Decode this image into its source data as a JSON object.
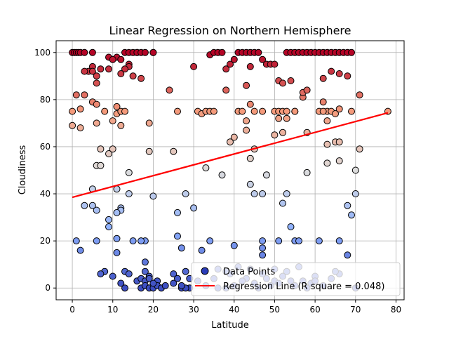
{
  "chart_data": {
    "type": "scatter",
    "title": "Linear Regression on Northern Hemisphere",
    "xlabel": "Latitude",
    "ylabel": "Cloudiness",
    "xlim": [
      -4,
      82
    ],
    "ylim": [
      -5,
      105
    ],
    "xticks": [
      0,
      10,
      20,
      30,
      40,
      50,
      60,
      70,
      80
    ],
    "yticks": [
      0,
      20,
      40,
      60,
      80,
      100
    ],
    "grid": true,
    "legend_position": "lower-right",
    "colormap": "coolwarm",
    "regression": {
      "slope": 0.46,
      "intercept": 38.5,
      "x_range": [
        0,
        78
      ],
      "color": "#ff0000"
    },
    "legend": {
      "points_label": "Data Points",
      "line_label": "Regression Line (R square = 0.048)"
    },
    "points": [
      [
        0,
        100
      ],
      [
        0.5,
        100
      ],
      [
        1,
        100
      ],
      [
        1.5,
        100
      ],
      [
        2,
        100
      ],
      [
        3,
        100
      ],
      [
        5,
        100
      ],
      [
        16,
        100
      ],
      [
        20,
        100
      ],
      [
        20,
        100
      ],
      [
        13,
        100
      ],
      [
        14,
        100
      ],
      [
        15,
        100
      ],
      [
        16,
        100
      ],
      [
        17,
        100
      ],
      [
        18,
        100
      ],
      [
        11,
        98
      ],
      [
        9,
        98
      ],
      [
        10,
        97
      ],
      [
        12,
        97
      ],
      [
        14,
        95
      ],
      [
        14,
        94
      ],
      [
        13,
        93
      ],
      [
        12,
        91
      ],
      [
        9,
        93
      ],
      [
        7,
        93
      ],
      [
        5,
        94
      ],
      [
        4,
        92
      ],
      [
        3,
        92
      ],
      [
        5,
        92
      ],
      [
        6,
        90
      ],
      [
        15,
        90
      ],
      [
        17,
        89
      ],
      [
        6,
        87
      ],
      [
        3,
        82
      ],
      [
        1,
        82
      ],
      [
        0,
        75
      ],
      [
        2,
        76
      ],
      [
        0,
        69
      ],
      [
        2,
        68
      ],
      [
        6,
        70
      ],
      [
        5,
        79
      ],
      [
        6,
        78
      ],
      [
        8,
        75
      ],
      [
        11,
        77
      ],
      [
        11,
        74
      ],
      [
        12,
        75
      ],
      [
        13,
        75
      ],
      [
        10,
        71
      ],
      [
        12,
        69
      ],
      [
        19,
        70
      ],
      [
        7,
        59
      ],
      [
        9,
        57
      ],
      [
        10,
        59
      ],
      [
        19,
        58
      ],
      [
        6,
        52
      ],
      [
        7,
        52
      ],
      [
        14,
        49
      ],
      [
        11,
        42
      ],
      [
        14,
        40
      ],
      [
        20,
        39
      ],
      [
        5,
        42
      ],
      [
        3,
        35
      ],
      [
        5,
        35
      ],
      [
        6,
        33
      ],
      [
        12,
        34
      ],
      [
        12,
        33
      ],
      [
        11,
        32
      ],
      [
        9,
        29
      ],
      [
        9,
        26
      ],
      [
        1,
        20
      ],
      [
        2,
        16
      ],
      [
        6,
        20
      ],
      [
        11,
        21
      ],
      [
        11,
        15
      ],
      [
        15,
        20
      ],
      [
        18,
        20
      ],
      [
        17,
        20
      ],
      [
        8,
        7
      ],
      [
        7,
        6
      ],
      [
        10,
        5
      ],
      [
        13,
        7
      ],
      [
        14,
        6
      ],
      [
        12,
        2
      ],
      [
        13,
        0
      ],
      [
        16,
        3
      ],
      [
        17,
        4
      ],
      [
        18,
        3
      ],
      [
        18,
        11
      ],
      [
        18,
        7
      ],
      [
        19,
        5
      ],
      [
        17,
        0
      ],
      [
        18,
        1
      ],
      [
        19,
        0
      ],
      [
        20,
        0
      ],
      [
        21,
        3
      ],
      [
        21,
        1
      ],
      [
        22,
        0
      ],
      [
        23,
        1
      ],
      [
        20,
        2
      ],
      [
        19,
        4
      ],
      [
        24,
        84
      ],
      [
        26,
        75
      ],
      [
        25,
        58
      ],
      [
        26,
        32
      ],
      [
        26,
        22
      ],
      [
        27,
        17
      ],
      [
        28,
        40
      ],
      [
        25,
        6
      ],
      [
        26,
        4
      ],
      [
        25,
        2
      ],
      [
        27,
        0
      ],
      [
        28,
        7
      ],
      [
        29,
        4
      ],
      [
        30,
        34
      ],
      [
        30,
        94
      ],
      [
        31,
        75
      ],
      [
        32,
        74
      ],
      [
        33,
        75
      ],
      [
        34,
        75
      ],
      [
        35,
        75
      ],
      [
        32,
        16
      ],
      [
        33,
        51
      ],
      [
        34,
        99
      ],
      [
        35,
        100
      ],
      [
        36,
        100
      ],
      [
        37,
        100
      ],
      [
        38,
        93
      ],
      [
        39,
        95
      ],
      [
        40,
        97
      ],
      [
        41,
        100
      ],
      [
        42,
        100
      ],
      [
        43,
        100
      ],
      [
        44,
        100
      ],
      [
        45,
        100
      ],
      [
        46,
        100
      ],
      [
        44,
        94
      ],
      [
        47,
        97
      ],
      [
        48,
        95
      ],
      [
        49,
        95
      ],
      [
        50,
        95
      ],
      [
        51,
        88
      ],
      [
        52,
        87
      ],
      [
        53,
        100
      ],
      [
        54,
        100
      ],
      [
        55,
        100
      ],
      [
        56,
        100
      ],
      [
        57,
        100
      ],
      [
        58,
        100
      ],
      [
        59,
        100
      ],
      [
        60,
        100
      ],
      [
        61,
        100
      ],
      [
        62,
        100
      ],
      [
        63,
        100
      ],
      [
        64,
        100
      ],
      [
        65,
        100
      ],
      [
        66,
        100
      ],
      [
        67,
        100
      ],
      [
        68,
        100
      ],
      [
        69,
        100
      ],
      [
        62,
        89
      ],
      [
        64,
        92
      ],
      [
        66,
        91
      ],
      [
        68,
        90
      ],
      [
        54,
        88
      ],
      [
        38,
        84
      ],
      [
        43,
        86
      ],
      [
        44,
        78
      ],
      [
        41,
        75
      ],
      [
        42,
        75
      ],
      [
        45,
        75
      ],
      [
        47,
        75
      ],
      [
        50,
        75
      ],
      [
        51,
        75
      ],
      [
        52,
        75
      ],
      [
        53,
        75
      ],
      [
        55,
        75
      ],
      [
        57,
        81
      ],
      [
        57,
        83
      ],
      [
        58,
        84
      ],
      [
        62,
        79
      ],
      [
        63,
        75
      ],
      [
        64,
        75
      ],
      [
        65,
        74
      ],
      [
        66,
        76
      ],
      [
        69,
        75
      ],
      [
        71,
        82
      ],
      [
        78,
        75
      ],
      [
        51,
        72
      ],
      [
        53,
        72
      ],
      [
        55,
        75
      ],
      [
        61,
        75
      ],
      [
        62,
        75
      ],
      [
        63,
        71
      ],
      [
        65,
        62
      ],
      [
        66,
        62
      ],
      [
        63,
        61
      ],
      [
        58,
        66
      ],
      [
        52,
        66
      ],
      [
        50,
        65
      ],
      [
        43,
        71
      ],
      [
        43,
        67
      ],
      [
        40,
        64
      ],
      [
        39,
        62
      ],
      [
        45,
        59
      ],
      [
        44,
        55
      ],
      [
        63,
        53
      ],
      [
        66,
        54
      ],
      [
        58,
        49
      ],
      [
        71,
        59
      ],
      [
        70,
        50
      ],
      [
        48,
        48
      ],
      [
        37,
        48
      ],
      [
        44,
        44
      ],
      [
        45,
        40
      ],
      [
        47,
        40
      ],
      [
        53,
        40
      ],
      [
        70,
        40
      ],
      [
        52,
        36
      ],
      [
        68,
        35
      ],
      [
        69,
        31
      ],
      [
        54,
        26
      ],
      [
        47,
        20
      ],
      [
        47,
        17
      ],
      [
        51,
        20
      ],
      [
        55,
        20
      ],
      [
        56,
        20
      ],
      [
        61,
        20
      ],
      [
        66,
        20
      ],
      [
        47,
        14
      ],
      [
        40,
        18
      ],
      [
        34,
        20
      ],
      [
        35,
        4
      ],
      [
        36,
        8
      ],
      [
        38,
        0
      ],
      [
        39,
        6
      ],
      [
        40,
        1
      ],
      [
        41,
        9
      ],
      [
        43,
        4
      ],
      [
        44,
        8
      ],
      [
        45,
        2
      ],
      [
        46,
        0
      ],
      [
        47,
        6
      ],
      [
        48,
        4
      ],
      [
        49,
        1
      ],
      [
        50,
        3
      ],
      [
        51,
        2
      ],
      [
        52,
        5
      ],
      [
        53,
        7
      ],
      [
        54,
        3
      ],
      [
        55,
        1
      ],
      [
        56,
        9
      ],
      [
        57,
        3
      ],
      [
        58,
        0
      ],
      [
        59,
        2
      ],
      [
        60,
        5
      ],
      [
        62,
        1
      ],
      [
        64,
        4
      ],
      [
        66,
        6
      ],
      [
        68,
        14
      ],
      [
        36,
        0
      ],
      [
        33,
        1
      ],
      [
        31,
        3
      ],
      [
        29,
        0
      ],
      [
        28,
        0
      ],
      [
        27,
        1
      ],
      [
        38,
        7
      ],
      [
        42,
        3
      ],
      [
        50,
        8
      ],
      [
        60,
        3
      ],
      [
        65,
        7
      ],
      [
        70,
        0
      ]
    ]
  }
}
